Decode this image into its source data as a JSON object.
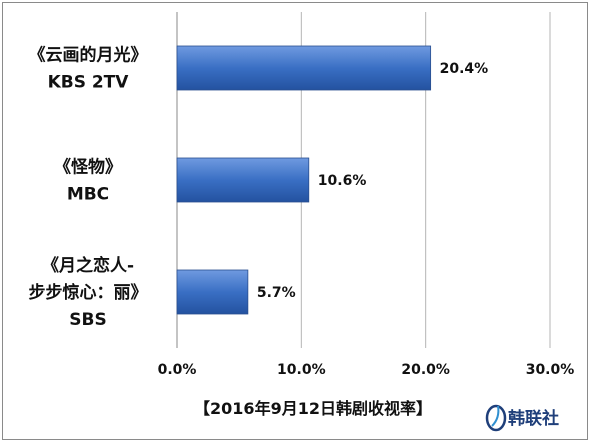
{
  "chart_data": {
    "type": "bar",
    "orientation": "horizontal",
    "title": "【2016年9月12日韩剧收视率】",
    "categories": [
      [
        "《云画的月光》",
        "KBS 2TV"
      ],
      [
        "《怪物》",
        "MBC"
      ],
      [
        "《月之恋人-",
        "步步惊心：丽》",
        "SBS"
      ]
    ],
    "values": [
      20.4,
      10.6,
      5.7
    ],
    "data_labels": [
      "20.4%",
      "10.6%",
      "5.7%"
    ],
    "xlim": [
      0,
      30
    ],
    "x_ticks": [
      0,
      10,
      20,
      30
    ],
    "x_tick_labels": [
      "0.0%",
      "10.0%",
      "20.0%",
      "30.0%"
    ],
    "grid": true,
    "bar_color": "#3a6fc4",
    "legend": "none"
  },
  "logo": {
    "text": "韩联社",
    "color": "#1f3f7a"
  }
}
